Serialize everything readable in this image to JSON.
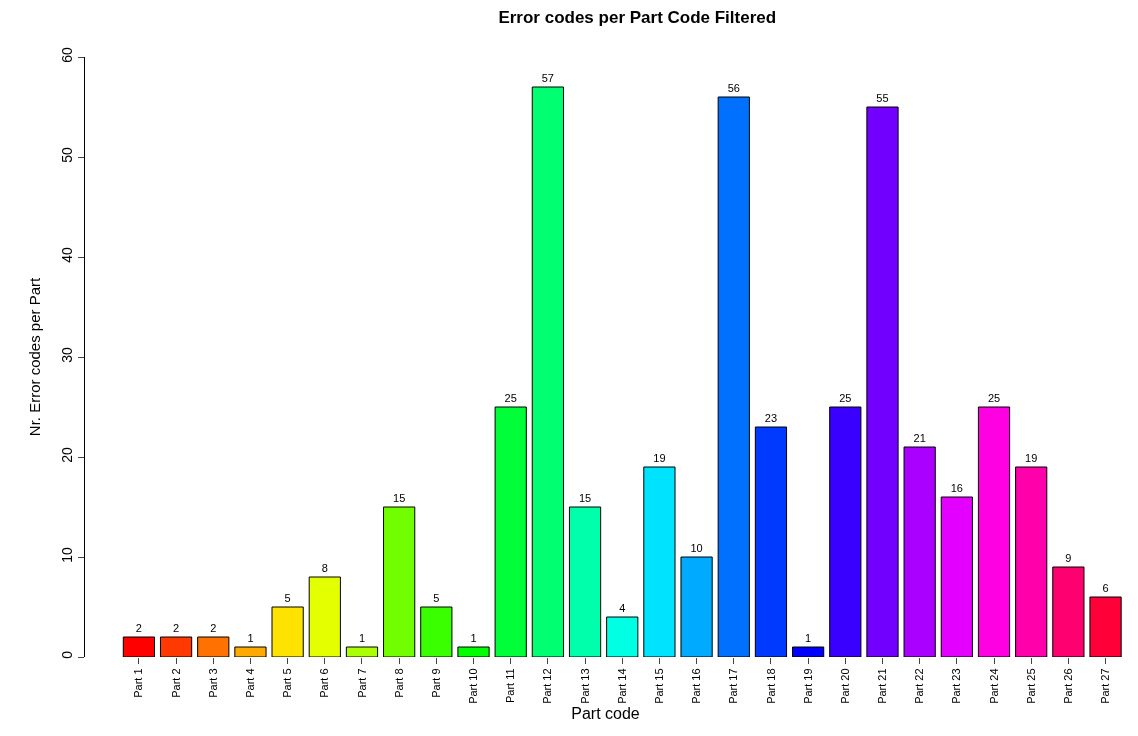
{
  "chart_data": {
    "type": "bar",
    "title": "Error codes per Part Code Filtered",
    "xlabel": "Part code",
    "ylabel": "Nr. Error codes per Part",
    "categories": [
      "Part 1",
      "Part 2",
      "Part 3",
      "Part 4",
      "Part 5",
      "Part 6",
      "Part 7",
      "Part 8",
      "Part 9",
      "Part 10",
      "Part 11",
      "Part 12",
      "Part 13",
      "Part 14",
      "Part 15",
      "Part 16",
      "Part 17",
      "Part 18",
      "Part 19",
      "Part 20",
      "Part 21",
      "Part 22",
      "Part 23",
      "Part 24",
      "Part 25",
      "Part 26",
      "Part 27"
    ],
    "values": [
      2,
      2,
      2,
      1,
      5,
      8,
      1,
      15,
      5,
      1,
      25,
      57,
      15,
      4,
      19,
      10,
      56,
      23,
      1,
      25,
      55,
      21,
      16,
      25,
      19,
      9,
      6
    ],
    "colors": [
      "#ff0000",
      "#ff3900",
      "#ff7100",
      "#ffaa00",
      "#ffe300",
      "#e3ff00",
      "#aaff00",
      "#71ff00",
      "#39ff00",
      "#00ff00",
      "#00ff39",
      "#00ff71",
      "#00ffaa",
      "#00ffe3",
      "#00e3ff",
      "#00aaff",
      "#0071ff",
      "#0039ff",
      "#0000ff",
      "#3900ff",
      "#7100ff",
      "#aa00ff",
      "#e300ff",
      "#ff00e3",
      "#ff00aa",
      "#ff0071",
      "#ff0039"
    ],
    "ylim": [
      0,
      60
    ],
    "yticks": [
      0,
      10,
      20,
      30,
      40,
      50,
      60
    ],
    "data_labels": true
  }
}
